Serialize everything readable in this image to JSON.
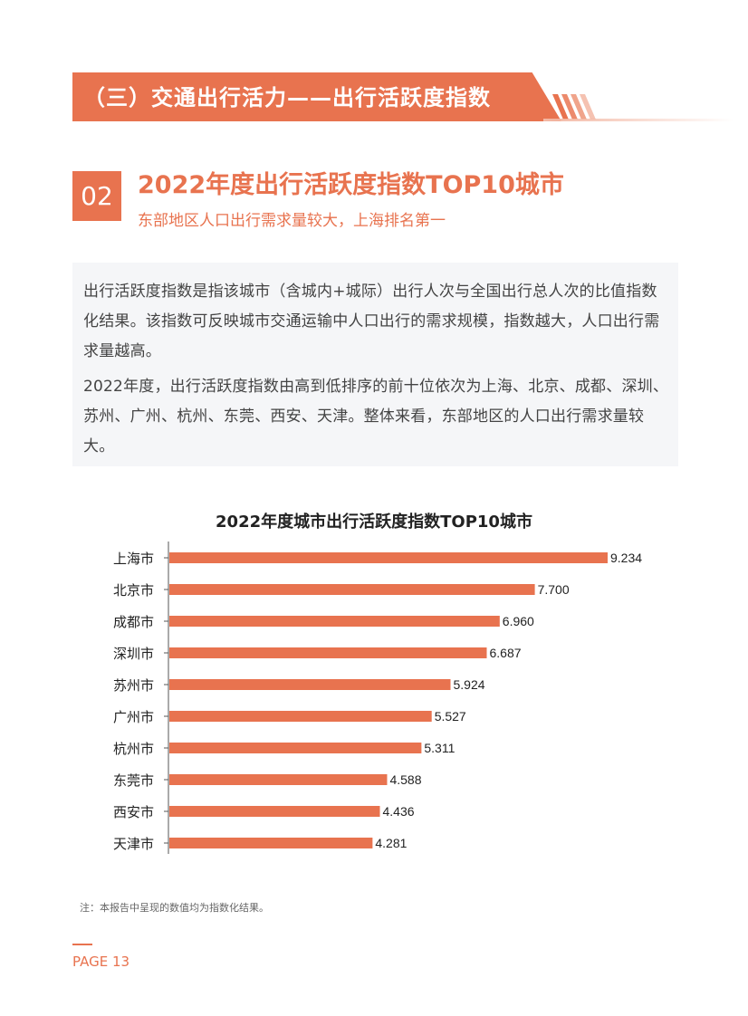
{
  "header": {
    "section_title": "（三）交通出行活力——出行活跃度指数"
  },
  "section": {
    "number": "02",
    "title": "2022年度出行活跃度指数TOP10城市",
    "subtitle": "东部地区人口出行需求量较大，上海排名第一"
  },
  "description": {
    "paragraph1": "出行活跃度指数是指该城市（含城内+城际）出行人次与全国出行总人次的比值指数化结果。该指数可反映城市交通运输中人口出行的需求规模，指数越大，人口出行需求量越高。",
    "paragraph2": "2022年度，出行活跃度指数由高到低排序的前十位依次为上海、北京、成都、深圳、苏州、广州、杭州、东莞、西安、天津。整体来看，东部地区的人口出行需求量较大。"
  },
  "chart_data": {
    "type": "bar",
    "orientation": "horizontal",
    "title": "2022年度城市出行活跃度指数TOP10城市",
    "categories": [
      "上海市",
      "北京市",
      "成都市",
      "深圳市",
      "苏州市",
      "广州市",
      "杭州市",
      "东莞市",
      "西安市",
      "天津市"
    ],
    "values": [
      9.234,
      7.7,
      6.96,
      6.687,
      5.924,
      5.527,
      5.311,
      4.588,
      4.436,
      4.281
    ],
    "value_labels": [
      "9.234",
      "7.700",
      "6.960",
      "6.687",
      "5.924",
      "5.527",
      "5.311",
      "4.588",
      "4.436",
      "4.281"
    ],
    "xlim": [
      0,
      9.234
    ],
    "grid": false,
    "bar_color": "#e8734f"
  },
  "footnote": "注：本报告中呈现的数值均为指数化结果。",
  "page": {
    "label": "PAGE 13"
  }
}
